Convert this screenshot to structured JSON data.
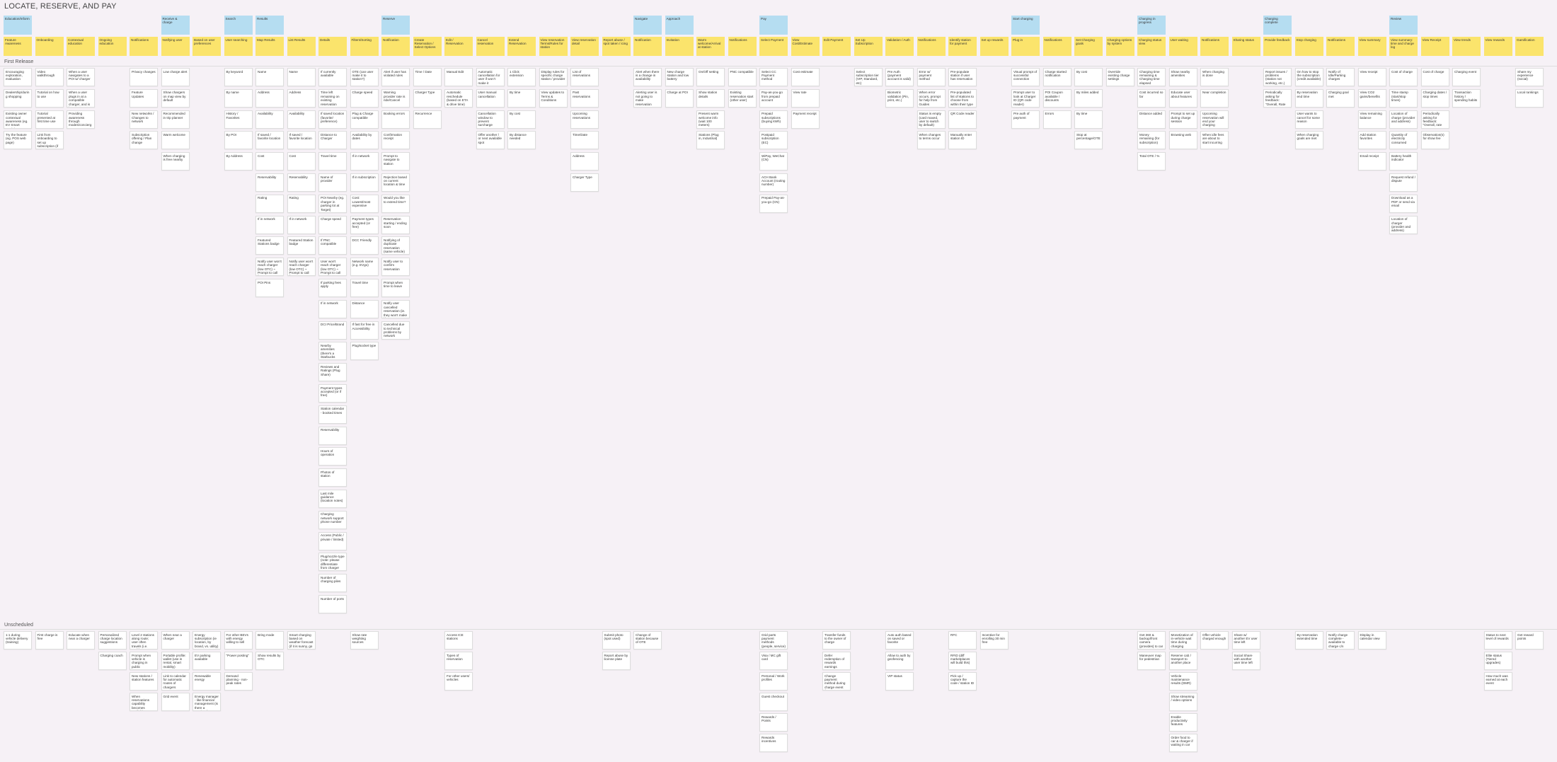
{
  "title": "LOCATE, RESERVE, AND PAY",
  "releases": [
    "First Release",
    "Unscheduled"
  ],
  "columns": [
    {
      "epic": "Education/Inform",
      "activity": "Feature Awareness",
      "stories": [
        [
          "Encouraging exploration, evaluation",
          "Dealership/during shopping",
          "Existing owner contextual awareness (eg. EV Smart Deals)",
          "Try the feature (eg. POS web page)"
        ],
        [
          "1:1 during vehicle delivery (training)"
        ]
      ]
    },
    {
      "activity": "Onboarding",
      "stories": [
        [
          "Video walkthrough",
          "Tutorial on how to use",
          "Tutorial presented at first time use",
          "Link from onboarding to set up subscription (if not active)"
        ],
        [
          "First charge is free"
        ]
      ]
    },
    {
      "activity": "Contextual education",
      "stories": [
        [
          "When a user navigates to a POI w/ charger",
          "When a user plugs in at a compatible charger, and is in",
          "Providing awareness through modes/concierge"
        ],
        [
          "Educate when near a charger"
        ]
      ]
    },
    {
      "activity": "Ongoing education",
      "stories": [
        [],
        [
          "Personalized charge location suggestions",
          "Charging coach"
        ]
      ]
    },
    {
      "activity": "Notifications",
      "stories": [
        [
          "Privacy changes",
          "Feature Updates",
          "New networks / Changes to network",
          "Subscription offering / Plan change"
        ],
        [
          "Level 2 stations along route; user often travels (i.e. work)",
          "Prompt when vehicle is charging in public",
          "New stations / station features",
          "When reservations capability becomes available"
        ]
      ]
    },
    {
      "epic": "Receive & charge",
      "activity": "Notifying user",
      "stories": [
        [
          "Low charge alert",
          "Show chargers on map view by default",
          "Recommended in trip planner",
          "Warm welcome",
          "When charging is free nearby"
        ],
        [
          "When near a charger",
          "Portable profile: wallet (use in rental, smart mobility)",
          "Link to calendar for automatic routes of chargers",
          "Grid event"
        ]
      ]
    },
    {
      "activity": "Based on user preferences",
      "stories": [
        [],
        [
          "Energy subscription (ie location, by brand, vs. utility)",
          "EV parking available",
          "Renewable energy",
          "Energy manager - like financial management (is there a service?)"
        ]
      ]
    },
    {
      "epic": "Search",
      "activity": "User searching",
      "stories": [
        [
          "By keyword",
          "By name",
          "History / Favorites",
          "By POI",
          "By Address"
        ],
        [
          "For other BEVs with energy willing to sell",
          "\"Power posting\"",
          "Demand planning - non-peak rates"
        ]
      ]
    },
    {
      "epic": "Results",
      "activity": "Map Results",
      "stories": [
        [
          "Name",
          "Address",
          "Availability",
          "If saved / favorite location",
          "Cost",
          "Reservability",
          "Rating",
          "If in network",
          "Featured Stations badge",
          "Notify user won't reach charger (low OTC) ~ Prompt to call for",
          "POI Pins"
        ],
        [
          "Bring mode",
          "Show results by OTC"
        ]
      ]
    },
    {
      "activity": "List Results",
      "stories": [
        [
          "Name",
          "Address",
          "Availability",
          "If saved / favorite location",
          "Cost",
          "Reservability",
          "Rating",
          "If in network",
          "Featured Station badge",
          "Notify user won't reach charger (low OTC) ~ Prompt to call for"
        ],
        [
          "Smart charging based on weather forecast (if it is sunny, go"
        ]
      ]
    },
    {
      "activity": "Details",
      "stories": [
        [
          "If currently available",
          "Time left remaining on existing reservation curve",
          "If saved location (favorite/ preference)",
          "Distance to Charger",
          "Travel time",
          "Name of provider",
          "POI Nearby (eg. charger in parking lot at Target)",
          "Charge speed",
          "If PNC compatible",
          "User won't reach charger (low OTC) ~ Prompt to call Roadie or 911",
          "If parking fees apply",
          "If in network",
          "DCI Price/Brand",
          "Nearby amenities (there's a Starbucks nearby)",
          "Reviews and Ratings (Plug Share)",
          "Payment types accepted (or if free)",
          "Station calendar - booked times",
          "Reservability",
          "Hours of operation",
          "Photos of station",
          "Last mile guidance (location notes)",
          "Charging network support phone number",
          "Access (Public / private / limited)",
          "Plug/nozzle type (note: please differentiate from charger speed)",
          "Number of charging piles",
          "Number of ports"
        ],
        []
      ]
    },
    {
      "activity": "Filters/Sorting",
      "stories": [
        [
          "OTE (can user make it to station?)",
          "Charge speed",
          "Plug & Charge compatible",
          "Availability by dates",
          "If in network",
          "If in subscription",
          "Cost: Lowest/most expensive",
          "Payment types accepted (or free)",
          "DCC Friendly",
          "Network name (e.g. EVgo)",
          "Travel time",
          "Distance",
          "If fast for free in Accessibility",
          "Plug/socket type"
        ],
        [
          "Show rate weighting sources"
        ]
      ]
    },
    {
      "epic": "Reserve",
      "activity": "Notification",
      "stories": [
        [
          "Alert if user has violated rules",
          "Warning provider rate is ride/Cancel",
          "Booking errors",
          "Confirmation receipt",
          "Prompt to navigate to station",
          "Rejection based on current location & time",
          "Would you like to extend time?",
          "Reservation starting / ending soon",
          "Notifying of duplicate reservation (same vehicle)",
          "Notify user to confirm reservation",
          "Prompt when time to leave",
          "Notify user cancelled reservation (ie. they won't make it)",
          "Cancelled due to technical problems by network"
        ],
        []
      ]
    },
    {
      "activity": "Create Reservation / Select Options",
      "stories": [
        [
          "Time / Date",
          "Charger Type",
          "Recurrence"
        ],
        []
      ]
    },
    {
      "activity": "Edit / Reservation",
      "stories": [
        [
          "Manual Edit",
          "Automatic reschedule (based on ETA & drive time)"
        ],
        [
          "Access ICE stations",
          "Types of reservation",
          "For other users/ vehicles"
        ]
      ]
    },
    {
      "activity": "Cancel reservation",
      "stories": [
        [
          "Automatic cancellation for user if won't make it",
          "User manual cancellation",
          "Cancellation window to prevent surcharge",
          "Offer another / or next available spot"
        ],
        []
      ]
    },
    {
      "activity": "Extend Reservation",
      "stories": [
        [
          "1 Click extension",
          "By time",
          "By cost",
          "By distance needed"
        ],
        []
      ]
    },
    {
      "activity": "View reservation Terms/Rules for station",
      "stories": [
        [
          "Display rules for specific charge station / provider",
          "View updates to Terms & Conditions"
        ],
        []
      ]
    },
    {
      "activity": "View reservation detail",
      "stories": [
        [
          "List of reservations",
          "Past reservations",
          "Upcoming reservations",
          "Time/Date",
          "Address",
          "Charger Type"
        ],
        []
      ]
    },
    {
      "activity": "Report abuse / spot taken / icing",
      "stories": [
        [],
        [
          "Submit photo (spot used)",
          "Report abuse by license plate"
        ]
      ]
    },
    {
      "epic": "Navigate",
      "activity": "Notification",
      "stories": [
        [
          "Alert when there is a change in availability",
          "Alerting user is not going to make reservation"
        ],
        [
          "Change of station because of OTE"
        ]
      ]
    },
    {
      "epic": "Approach",
      "activity": "Invitation",
      "stories": [
        [
          "New charge station and low battery",
          "Charge at POI"
        ],
        []
      ]
    },
    {
      "activity": "Warm welcome/Arrival at station",
      "stories": [
        [
          "On/Off setting",
          "Show station details",
          "Present warm welcome info (wait 100 meters)",
          "Stations (Plug in, Industrial)"
        ],
        []
      ]
    },
    {
      "activity": "Notifications",
      "stories": [
        [
          "PNC compatible",
          "Existing reservation start (other user)"
        ],
        []
      ]
    },
    {
      "epic": "Pay",
      "activity": "Select Payment",
      "stories": [
        [
          "Select CC Payment method",
          "Pay-as-you-go from prepaid account",
          "Prepaid subscriptions (buying kWh)",
          "Postpaid subscription (EC)",
          "WiPay, WeChat (CN)",
          "ACH Bank Account (routing number)",
          "Prepaid Pay-as-you-go (CN)"
        ],
        [
          "Grid parts payment methods (people, service)",
          "Visa / MC gift card",
          "Personal / Work profiles",
          "Guest checkout",
          "Rewards / Points",
          "Rewards incentives"
        ]
      ]
    },
    {
      "activity": "View Cost/Estimate",
      "stories": [
        [
          "Cost estimate",
          "View rate",
          "Payment receipt"
        ],
        []
      ]
    },
    {
      "activity": "Edit Payment",
      "stories": [
        [],
        [
          "Transfer funds to the owner of charge",
          "Defer redemption of rewards earnings",
          "Change payment method during charge event (e.g. work/personal)"
        ]
      ]
    },
    {
      "activity": "Set Up Subscription",
      "stories": [
        [
          "Select subscription tier (VIP, Standard, etc)"
        ],
        []
      ]
    },
    {
      "activity": "Validation / Auth",
      "stories": [
        [
          "Pre Auth (payment account is valid)",
          "Biometric validation (Pin, print, etc.)"
        ],
        [
          "Auto auth based on saved or favorite",
          "Allow to auth by geofencing",
          "VIP status"
        ]
      ]
    },
    {
      "activity": "Notifications",
      "stories": [
        [
          "Error w/ payment method",
          "When error occurs, prompt for help from Guides",
          "Status is empty (card maxed, user to switch by default)",
          "When changes to terms occur"
        ],
        []
      ]
    },
    {
      "activity": "Identify station for payment",
      "stories": [
        [
          "Pre-populate station if user has reservation",
          "Pre-populated list of stations to choose from within their type",
          "QR Code reader",
          "Manually enter station ID"
        ],
        [
          "RFC",
          "RFID (diff marketplaces will build this)",
          "Pick up / capture the code / station ID"
        ]
      ]
    },
    {
      "activity": "Set up rewards",
      "stories": [
        [],
        [
          "Incentive for enrolling 30 min free"
        ]
      ]
    },
    {
      "epic": "Start charging",
      "activity": "Plug in",
      "stories": [
        [
          "Visual prompt of successful connection",
          "Prompt user to look at Charger ID (QR code reader)",
          "Pre auth of payment"
        ],
        []
      ]
    },
    {
      "activity": "Notifications",
      "stories": [
        [
          "Charge started notification",
          "POI Coupon available / discounts",
          "Errors"
        ],
        []
      ]
    },
    {
      "activity": "Set Charging goals",
      "stories": [
        [
          "By cost",
          "By miles added",
          "By time",
          "Stop at percentage/OTE"
        ],
        []
      ]
    },
    {
      "activity": "Charging options by system",
      "stories": [
        [
          "Override existing charge settings"
        ],
        []
      ]
    },
    {
      "epic": "Charging in progress",
      "activity": "Charging status view",
      "stories": [
        [
          "Charging time remaining & Charging time elapsed",
          "Cost incurred so far",
          "Distance added",
          "Money remaining (for subscription)",
          "Total OTE / %"
        ],
        [
          "Get 360 & backup/front camera (provides) to car",
          "Maneuver map for pedestrian"
        ]
      ]
    },
    {
      "activity": "User waiting",
      "stories": [
        [
          "Show nearby amenities",
          "Educate user about features",
          "Prompt to set up during charge session",
          "Browsing web"
        ],
        [
          "Monetization of in-vehicle wait time during charging",
          "Reserve cab / transport to another place",
          "Vehicle maintenance results (DMR)",
          "Show streaming / video options",
          "Enable productivity features",
          "Order food to car & charger if waiting in car"
        ]
      ]
    },
    {
      "activity": "Notifications",
      "stories": [
        [
          "When charging is done",
          "Near completion",
          "Upcoming reservation will end your charging session",
          "When idle fees are about to start incurring"
        ],
        [
          "Offer vehicle charged enough"
        ]
      ]
    },
    {
      "activity": "Sharing status",
      "stories": [
        [],
        [
          "Share w/ another EV user time left",
          "Social Share with another user time left"
        ]
      ]
    },
    {
      "epic": "Charging complete",
      "activity": "Provide feedback",
      "stories": [
        [
          "Report issues / problems (station not working, etc.)",
          "Periodically asking for feedback: \"Overall, Rate us\""
        ],
        []
      ]
    },
    {
      "activity": "Stop charging",
      "stories": [
        [
          "On how to stop the subscription (credit available)",
          "By reservation end time",
          "User wants to cancel for some reason",
          "When charging goals are met"
        ],
        [
          "By reservation extended time"
        ]
      ]
    },
    {
      "activity": "Notifications",
      "stories": [
        [
          "Notify of Idle/Parking charges",
          "Charging goal met"
        ],
        [
          "Notify charge complete - available to charge c/n"
        ]
      ]
    },
    {
      "activity": "View summary",
      "stories": [
        [
          "View receipt",
          "View CO2 gains/benefits",
          "View remaining balance",
          "Add station favorites",
          "Email receipt"
        ],
        [
          "Display in calendar view"
        ]
      ]
    },
    {
      "epic": "Review",
      "activity": "View summary: time and charge log",
      "stories": [
        [
          "Cost of charge",
          "Time stamp (start/stop times)",
          "Location of charge (provider and address)",
          "Quantity of electricity consumed",
          "Battery health indicator",
          "Request refund / dispute",
          "Download as a PDF or send via email",
          "Location of charger (provider and address)"
        ],
        []
      ]
    },
    {
      "activity": "View Receipt",
      "stories": [
        [
          "Cost of charge",
          "Charging dates / stop times",
          "Periodically asking for feedback: \"Overall, rate us\"",
          "Observation(s) for show fee"
        ],
        []
      ]
    },
    {
      "activity": "View trends",
      "stories": [
        [
          "Charging event",
          "Transaction history / spending habits"
        ],
        []
      ]
    },
    {
      "activity": "View rewards",
      "stories": [
        [],
        [
          "Status to next level of rewards",
          "Elite status (Tiered upgrades)",
          "How much was earned at each event"
        ]
      ]
    },
    {
      "activity": "Gamification",
      "stories": [
        [
          "Share my experience (social)",
          "Local rankings"
        ],
        [
          "Get reward points"
        ]
      ]
    }
  ]
}
